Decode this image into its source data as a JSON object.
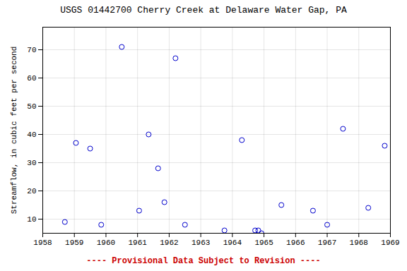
{
  "chart_data": {
    "type": "scatter",
    "title": "USGS 01442700 Cherry Creek at Delaware Water Gap, PA",
    "ylabel": "Streamflow, in cubic feet per second",
    "footnote": "---- Provisional Data Subject to Revision ----",
    "footnote_color": "#cc0000",
    "x": [
      1958.7,
      1959.05,
      1959.5,
      1959.85,
      1960.5,
      1961.05,
      1961.35,
      1961.65,
      1961.85,
      1962.2,
      1962.5,
      1963.75,
      1964.3,
      1964.72,
      1964.82,
      1964.92,
      1965.55,
      1966.55,
      1967.0,
      1967.5,
      1968.3,
      1968.82
    ],
    "values": [
      9,
      37,
      35,
      8,
      71,
      13,
      40,
      28,
      16,
      67,
      8,
      6,
      38,
      6,
      6,
      5,
      15,
      13,
      8,
      42,
      14,
      36
    ],
    "color": "#0000cc",
    "marker": "circle",
    "xlim": [
      1958,
      1969
    ],
    "ylim": [
      5,
      78
    ],
    "xticks": [
      1958,
      1959,
      1960,
      1961,
      1962,
      1963,
      1964,
      1965,
      1966,
      1967,
      1968,
      1969
    ],
    "yticks": [
      10,
      20,
      30,
      40,
      50,
      60,
      70
    ],
    "grid": true
  }
}
